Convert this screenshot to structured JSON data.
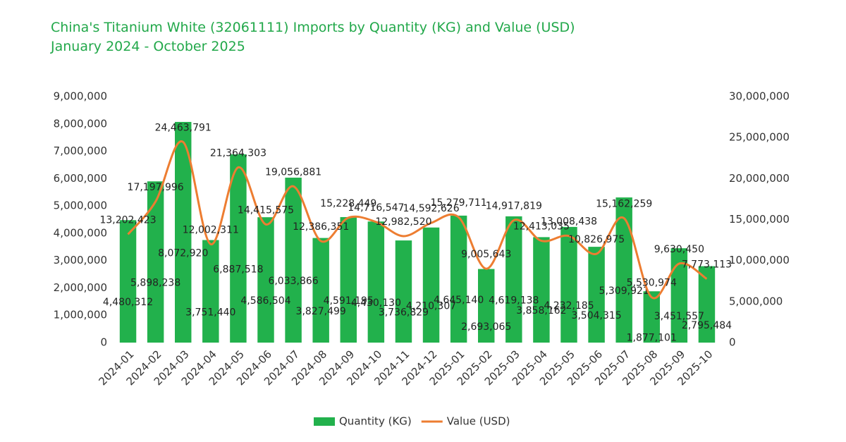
{
  "chart_data": {
    "type": "bar_line",
    "title": "China's Titanium White (32061111) Imports by Quantity (KG) and Value (USD)",
    "subtitle": "January 2024 - October 2025",
    "categories": [
      "2024-01",
      "2024-02",
      "2024-03",
      "2024-04",
      "2024-05",
      "2024-06",
      "2024-07",
      "2024-08",
      "2024-09",
      "2024-10",
      "2024-11",
      "2024-12",
      "2025-01",
      "2025-02",
      "2025-03",
      "2025-04",
      "2025-05",
      "2025-06",
      "2025-07",
      "2025-08",
      "2025-09",
      "2025-10"
    ],
    "series": [
      {
        "name": "Quantity (KG)",
        "type": "bar",
        "color": "#22b14c",
        "values": [
          4480312,
          5898238,
          8072920,
          3751440,
          6887518,
          4586504,
          6033866,
          3827499,
          4591195,
          4430130,
          3736829,
          4210307,
          4645140,
          2693065,
          4619138,
          3858162,
          4232185,
          3504315,
          5309921,
          1877101,
          3451557,
          2795484
        ],
        "value_labels": [
          "4,480,312",
          "5,898,238",
          "8,072,920",
          "3,751,440",
          "6,887,518",
          "4,586,504",
          "6,033,866",
          "3,827,499",
          "4,591,195",
          "4,430,130",
          "3,736,829",
          "4,210,307",
          "4,645,140",
          "2,693,065",
          "4,619,138",
          "3,858,162",
          "4,232,185",
          "3,504,315",
          "5,309,921",
          "1,877,101",
          "3,451,557",
          "2,795,484"
        ]
      },
      {
        "name": "Value (USD)",
        "type": "line",
        "axis": "y2",
        "color": "#ed7d31",
        "values": [
          13202423,
          17197996,
          24463791,
          12002311,
          21364303,
          14415575,
          19056881,
          12386351,
          15228449,
          14716547,
          12982520,
          14592626,
          15279711,
          9005643,
          14917819,
          12413035,
          13008438,
          10826975,
          15162259,
          5530974,
          9630450,
          7773113
        ],
        "value_labels": [
          "13,202,423",
          "17,197,996",
          "24,463,791",
          "12,002,311",
          "21,364,303",
          "14,415,575",
          "19,056,881",
          "12,386,351",
          "15,228,449",
          "14,716,547",
          "12,982,520",
          "14,592,626",
          "15,279,711",
          "9,005,643",
          "14,917,819",
          "12,413,035",
          "13,008,438",
          "10,826,975",
          "15,162,259",
          "5,530,974",
          "9,630,450",
          "7,773,113"
        ]
      }
    ],
    "ylim": [
      0,
      9000000
    ],
    "yticks": [
      0,
      {
        "value": 1000000,
        "label": "1,000,000"
      },
      {
        "value": 2000000,
        "label": "2,000,000"
      },
      {
        "value": 3000000,
        "label": "3,000,000"
      },
      {
        "value": 4000000,
        "label": "4,000,000"
      },
      {
        "value": 5000000,
        "label": "5,000,000"
      },
      {
        "value": 6000000,
        "label": "6,000,000"
      },
      {
        "value": 7000000,
        "label": "7,000,000"
      },
      {
        "value": 8000000,
        "label": "8,000,000"
      },
      {
        "value": 9000000,
        "label": "9,000,000"
      }
    ],
    "y2lim": [
      0,
      30000000
    ],
    "y2ticks": [
      0,
      {
        "value": 5000000,
        "label": "5,000,000"
      },
      {
        "value": 10000000,
        "label": "10,000,000"
      },
      {
        "value": 15000000,
        "label": "15,000,000"
      },
      {
        "value": 20000000,
        "label": "20,000,000"
      },
      {
        "value": 25000000,
        "label": "25,000,000"
      },
      {
        "value": 30000000,
        "label": "30,000,000"
      }
    ],
    "grid": false,
    "legend": "bottom"
  }
}
